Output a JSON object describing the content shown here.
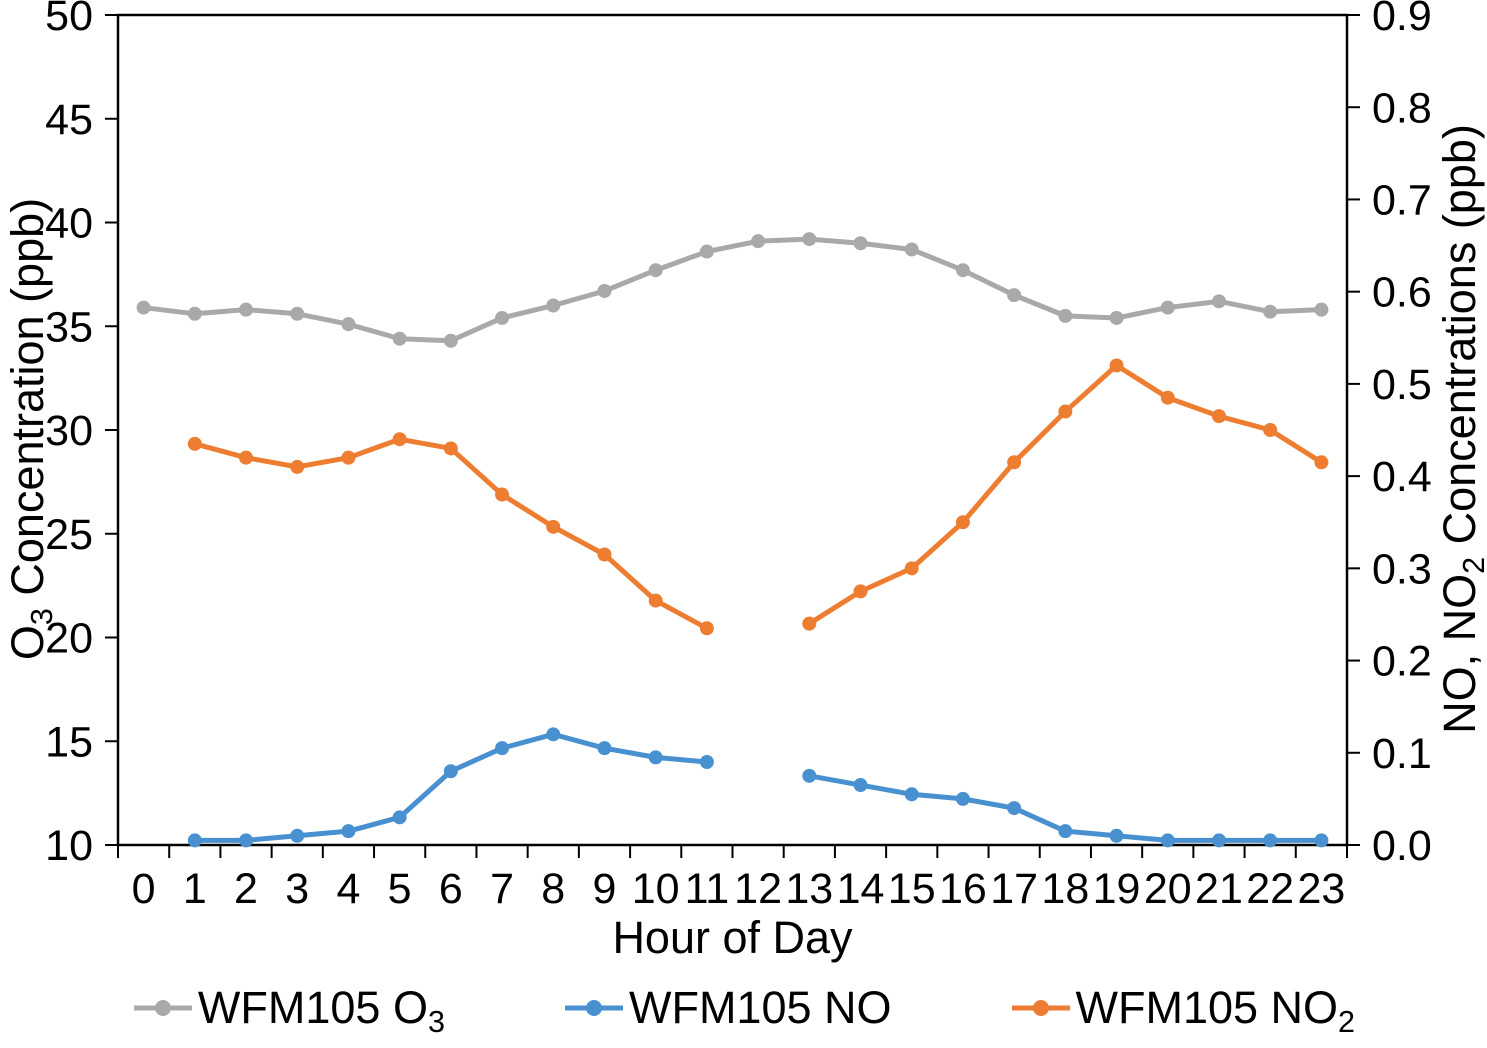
{
  "chart_data": {
    "type": "line",
    "title": "",
    "xlabel": "Hour of Day",
    "ylabel_left": "O3 Concentration (ppb)",
    "ylabel_right": "NO, NO2 Concentrations (ppb)",
    "x": [
      0,
      1,
      2,
      3,
      4,
      5,
      6,
      7,
      8,
      9,
      10,
      11,
      12,
      13,
      14,
      15,
      16,
      17,
      18,
      19,
      20,
      21,
      22,
      23
    ],
    "x_tick_labels": [
      "0",
      "1",
      "2",
      "3",
      "4",
      "5",
      "6",
      "7",
      "8",
      "9",
      "10",
      "11",
      "12",
      "13",
      "14",
      "15",
      "16",
      "17",
      "18",
      "19",
      "20",
      "21",
      "22",
      "23"
    ],
    "y_left_range": [
      10,
      50
    ],
    "y_left_ticks": [
      "10",
      "15",
      "20",
      "25",
      "30",
      "35",
      "40",
      "45",
      "50"
    ],
    "y_right_range": [
      0,
      0.9
    ],
    "y_right_ticks": [
      "0.0",
      "0.1",
      "0.2",
      "0.3",
      "0.4",
      "0.5",
      "0.6",
      "0.7",
      "0.8",
      "0.9"
    ],
    "grid": false,
    "legend_position": "bottom",
    "series": [
      {
        "id": "o3",
        "name": "WFM105 O3",
        "axis": "left",
        "color": "#A9A9A9",
        "values": [
          35.9,
          35.6,
          35.8,
          35.6,
          35.1,
          34.4,
          34.3,
          35.4,
          36.0,
          36.7,
          37.7,
          38.6,
          39.1,
          39.2,
          39.0,
          38.7,
          37.7,
          36.5,
          35.5,
          35.4,
          35.9,
          36.2,
          35.7,
          35.8
        ]
      },
      {
        "id": "no",
        "name": "WFM105 NO",
        "axis": "right",
        "color": "#4990D0",
        "values": [
          null,
          0.005,
          0.005,
          0.01,
          0.015,
          0.03,
          0.08,
          0.105,
          0.12,
          0.105,
          0.095,
          0.09,
          null,
          0.075,
          0.065,
          0.055,
          0.05,
          0.04,
          0.015,
          0.01,
          0.005,
          0.005,
          0.005,
          0.005
        ]
      },
      {
        "id": "no2",
        "name": "WFM105 NO2",
        "axis": "right",
        "color": "#ED7D31",
        "values": [
          null,
          0.435,
          0.42,
          0.41,
          0.42,
          0.44,
          0.43,
          0.38,
          0.345,
          0.315,
          0.265,
          0.235,
          null,
          0.24,
          0.275,
          0.3,
          0.35,
          0.415,
          0.47,
          0.52,
          0.485,
          0.465,
          0.45,
          0.415
        ]
      }
    ]
  },
  "axes": {
    "left_title": {
      "prefix": "O",
      "sub": "3",
      "suffix": " Concentration (ppb)"
    },
    "right_title": {
      "prefix": "NO, NO",
      "sub": "2",
      "suffix": " Concentrations (ppb)"
    },
    "x_title": "Hour of Day"
  },
  "legend": {
    "items": [
      {
        "prefix": "WFM105 O",
        "sub": "3"
      },
      {
        "prefix": "WFM105 NO",
        "sub": ""
      },
      {
        "prefix": "WFM105 NO",
        "sub": "2"
      }
    ]
  }
}
